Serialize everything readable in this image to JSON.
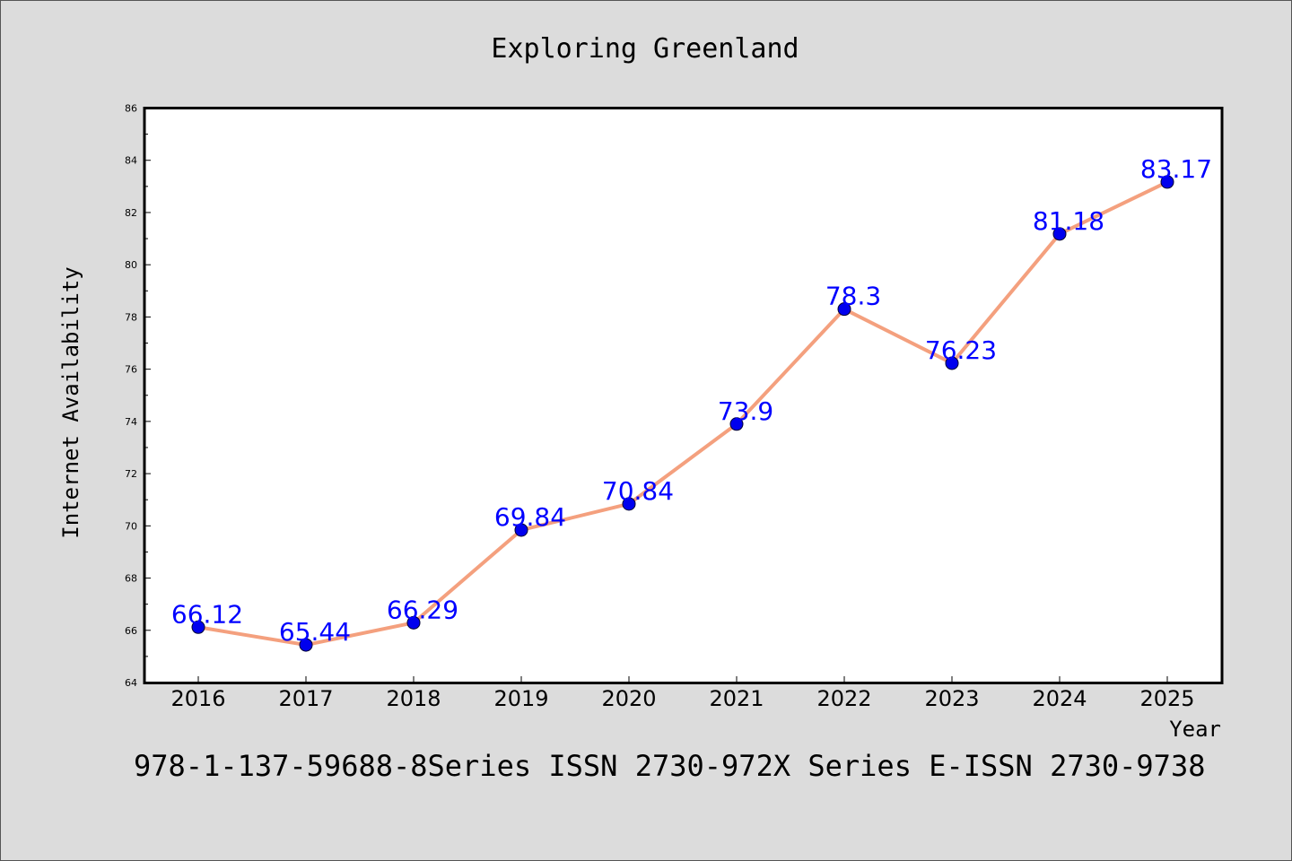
{
  "chart_data": {
    "type": "line",
    "title": "Exploring Greenland",
    "xlabel": "Year",
    "ylabel": "Internet Availability",
    "footer": "978-1-137-59688-8Series ISSN 2730-972X Series E-ISSN 2730-9738",
    "categories": [
      "2016",
      "2017",
      "2018",
      "2019",
      "2020",
      "2021",
      "2022",
      "2023",
      "2024",
      "2025"
    ],
    "values": [
      66.12,
      65.44,
      66.29,
      69.84,
      70.84,
      73.9,
      78.3,
      76.23,
      81.18,
      83.17
    ],
    "data_labels": [
      "66.12",
      "65.44",
      "66.29",
      "69.84",
      "70.84",
      "73.9",
      "78.3",
      "76.23",
      "81.18",
      "83.17"
    ],
    "ylim": [
      64,
      86
    ],
    "yticks": [
      "64",
      "66",
      "68",
      "70",
      "72",
      "74",
      "76",
      "78",
      "80",
      "82",
      "84",
      "86"
    ],
    "grid": false,
    "colors": {
      "line": "#f4a07e",
      "marker": "#0000ee",
      "label": "#0000ff",
      "background": "#dcdcdc",
      "plot_background": "#ffffff"
    }
  }
}
